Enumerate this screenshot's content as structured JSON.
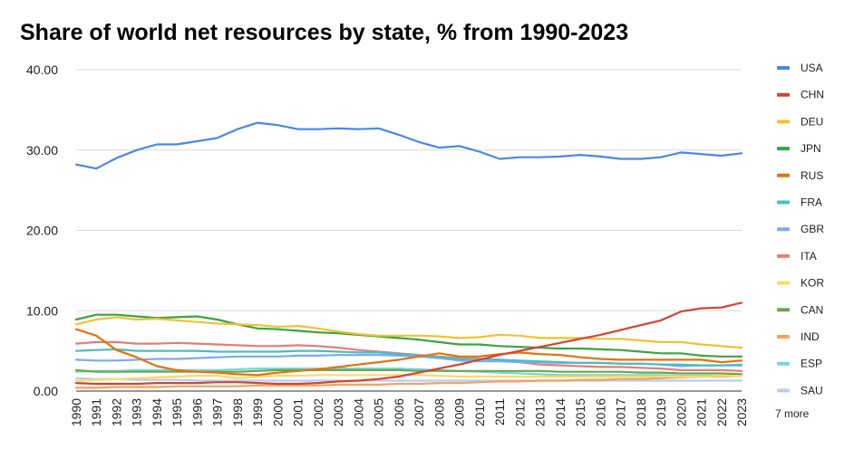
{
  "chart_data": {
    "type": "line",
    "title": "Share of world net resources by state, % from 1990-2023",
    "xlabel": "",
    "ylabel": "",
    "ylim": [
      0,
      40
    ],
    "yticks": [
      "0.00",
      "10.00",
      "20.00",
      "30.00",
      "40.00"
    ],
    "grid": true,
    "legend_position": "right",
    "legend_more": "7 more",
    "categories": [
      "1990",
      "1991",
      "1992",
      "1993",
      "1994",
      "1995",
      "1996",
      "1997",
      "1998",
      "1999",
      "2000",
      "2001",
      "2002",
      "2003",
      "2004",
      "2005",
      "2006",
      "2007",
      "2008",
      "2009",
      "2010",
      "2011",
      "2012",
      "2013",
      "2014",
      "2015",
      "2016",
      "2017",
      "2018",
      "2019",
      "2020",
      "2021",
      "2022",
      "2023"
    ],
    "series": [
      {
        "name": "USA",
        "color": "#4a86e8",
        "values": [
          28.2,
          27.7,
          29.0,
          30.0,
          30.7,
          30.7,
          31.1,
          31.5,
          32.6,
          33.4,
          33.1,
          32.6,
          32.6,
          32.7,
          32.6,
          32.7,
          31.9,
          31.0,
          30.3,
          30.5,
          29.8,
          28.9,
          29.1,
          29.1,
          29.2,
          29.4,
          29.2,
          28.9,
          28.9,
          29.1,
          29.7,
          29.5,
          29.3,
          29.6
        ]
      },
      {
        "name": "CHN",
        "color": "#d44330",
        "values": [
          1.0,
          0.9,
          0.9,
          0.9,
          1.0,
          1.0,
          1.0,
          1.1,
          1.1,
          1.0,
          0.9,
          0.9,
          1.0,
          1.2,
          1.3,
          1.5,
          1.8,
          2.3,
          2.8,
          3.3,
          3.9,
          4.5,
          5.0,
          5.5,
          6.0,
          6.5,
          7.0,
          7.6,
          8.2,
          8.8,
          9.9,
          10.3,
          10.4,
          11.0
        ]
      },
      {
        "name": "DEU",
        "color": "#f1c232",
        "values": [
          8.3,
          8.9,
          9.2,
          8.9,
          9.0,
          8.8,
          8.6,
          8.4,
          8.3,
          8.2,
          8.0,
          8.1,
          7.8,
          7.4,
          7.1,
          6.9,
          6.9,
          6.9,
          6.8,
          6.6,
          6.7,
          7.0,
          6.9,
          6.6,
          6.6,
          6.6,
          6.5,
          6.5,
          6.3,
          6.1,
          6.1,
          5.8,
          5.6,
          5.4
        ]
      },
      {
        "name": "JPN",
        "color": "#3ba341",
        "values": [
          8.9,
          9.5,
          9.5,
          9.3,
          9.1,
          9.2,
          9.3,
          8.9,
          8.3,
          7.8,
          7.7,
          7.5,
          7.3,
          7.2,
          7.0,
          6.8,
          6.6,
          6.4,
          6.1,
          5.8,
          5.8,
          5.6,
          5.5,
          5.4,
          5.3,
          5.3,
          5.2,
          5.1,
          4.9,
          4.7,
          4.7,
          4.4,
          4.3,
          4.3
        ]
      },
      {
        "name": "RUS",
        "color": "#e8710a",
        "values": [
          7.7,
          6.9,
          5.1,
          4.2,
          3.1,
          2.6,
          2.4,
          2.3,
          2.1,
          2.0,
          2.3,
          2.5,
          2.7,
          3.0,
          3.3,
          3.6,
          3.9,
          4.3,
          4.7,
          4.3,
          4.3,
          4.6,
          4.8,
          4.6,
          4.5,
          4.2,
          4.0,
          3.9,
          3.9,
          3.9,
          3.9,
          3.9,
          3.6,
          3.8
        ]
      },
      {
        "name": "FRA",
        "color": "#46bdc6",
        "values": [
          5.0,
          5.1,
          5.2,
          5.0,
          5.0,
          5.0,
          5.0,
          4.9,
          4.9,
          4.9,
          4.9,
          5.0,
          5.0,
          4.9,
          4.8,
          4.8,
          4.6,
          4.4,
          4.2,
          4.0,
          4.0,
          3.9,
          3.8,
          3.7,
          3.6,
          3.5,
          3.5,
          3.4,
          3.4,
          3.3,
          3.3,
          3.2,
          3.2,
          3.2
        ]
      },
      {
        "name": "GBR",
        "color": "#7baaf7",
        "values": [
          3.9,
          3.8,
          3.8,
          3.9,
          4.0,
          4.0,
          4.1,
          4.2,
          4.3,
          4.3,
          4.3,
          4.4,
          4.4,
          4.5,
          4.5,
          4.5,
          4.4,
          4.3,
          4.1,
          3.8,
          3.7,
          3.7,
          3.6,
          3.6,
          3.5,
          3.5,
          3.5,
          3.4,
          3.4,
          3.3,
          3.1,
          3.2,
          3.2,
          3.3
        ]
      },
      {
        "name": "ITA",
        "color": "#e67c73",
        "values": [
          5.9,
          6.1,
          6.1,
          5.9,
          5.9,
          6.0,
          5.9,
          5.8,
          5.7,
          5.6,
          5.6,
          5.7,
          5.6,
          5.4,
          5.1,
          4.9,
          4.7,
          4.5,
          4.3,
          4.1,
          4.0,
          3.9,
          3.6,
          3.3,
          3.2,
          3.1,
          3.0,
          3.0,
          2.9,
          2.8,
          2.6,
          2.6,
          2.6,
          2.5
        ]
      },
      {
        "name": "KOR",
        "color": "#ffd966",
        "values": [
          1.3,
          1.4,
          1.5,
          1.6,
          1.7,
          1.8,
          1.9,
          1.9,
          1.6,
          1.8,
          1.9,
          1.9,
          2.0,
          2.0,
          2.0,
          2.0,
          2.0,
          2.0,
          1.9,
          1.8,
          1.8,
          1.8,
          1.8,
          1.8,
          1.8,
          1.8,
          1.8,
          1.8,
          1.8,
          1.8,
          1.8,
          1.8,
          1.9,
          1.9
        ]
      },
      {
        "name": "CAN",
        "color": "#6aa84f",
        "values": [
          2.6,
          2.4,
          2.4,
          2.4,
          2.4,
          2.4,
          2.4,
          2.4,
          2.4,
          2.5,
          2.6,
          2.6,
          2.6,
          2.6,
          2.6,
          2.6,
          2.6,
          2.5,
          2.5,
          2.5,
          2.5,
          2.5,
          2.5,
          2.5,
          2.4,
          2.4,
          2.4,
          2.4,
          2.3,
          2.3,
          2.2,
          2.2,
          2.2,
          2.1
        ]
      },
      {
        "name": "IND",
        "color": "#f6a15d",
        "values": [
          0.4,
          0.4,
          0.5,
          0.5,
          0.5,
          0.6,
          0.6,
          0.6,
          0.6,
          0.7,
          0.7,
          0.7,
          0.7,
          0.8,
          0.8,
          0.8,
          0.9,
          0.9,
          1.0,
          1.0,
          1.1,
          1.2,
          1.2,
          1.3,
          1.3,
          1.4,
          1.4,
          1.5,
          1.5,
          1.6,
          1.7,
          1.8,
          1.8,
          1.9
        ]
      },
      {
        "name": "ESP",
        "color": "#76d7dc",
        "values": [
          2.4,
          2.5,
          2.5,
          2.6,
          2.6,
          2.6,
          2.6,
          2.6,
          2.7,
          2.8,
          2.8,
          2.8,
          2.8,
          2.8,
          2.8,
          2.8,
          2.8,
          2.7,
          2.6,
          2.5,
          2.4,
          2.3,
          2.2,
          2.1,
          2.0,
          2.0,
          2.0,
          2.0,
          2.0,
          2.0,
          1.9,
          1.9,
          1.9,
          1.9
        ]
      },
      {
        "name": "SAU",
        "color": "#b4cef7",
        "values": [
          1.6,
          1.5,
          1.5,
          1.4,
          1.4,
          1.4,
          1.3,
          1.3,
          1.3,
          1.3,
          1.3,
          1.3,
          1.3,
          1.3,
          1.3,
          1.3,
          1.3,
          1.3,
          1.3,
          1.3,
          1.3,
          1.3,
          1.3,
          1.3,
          1.3,
          1.3,
          1.3,
          1.3,
          1.3,
          1.3,
          1.3,
          1.3,
          1.3,
          1.3
        ]
      }
    ]
  }
}
